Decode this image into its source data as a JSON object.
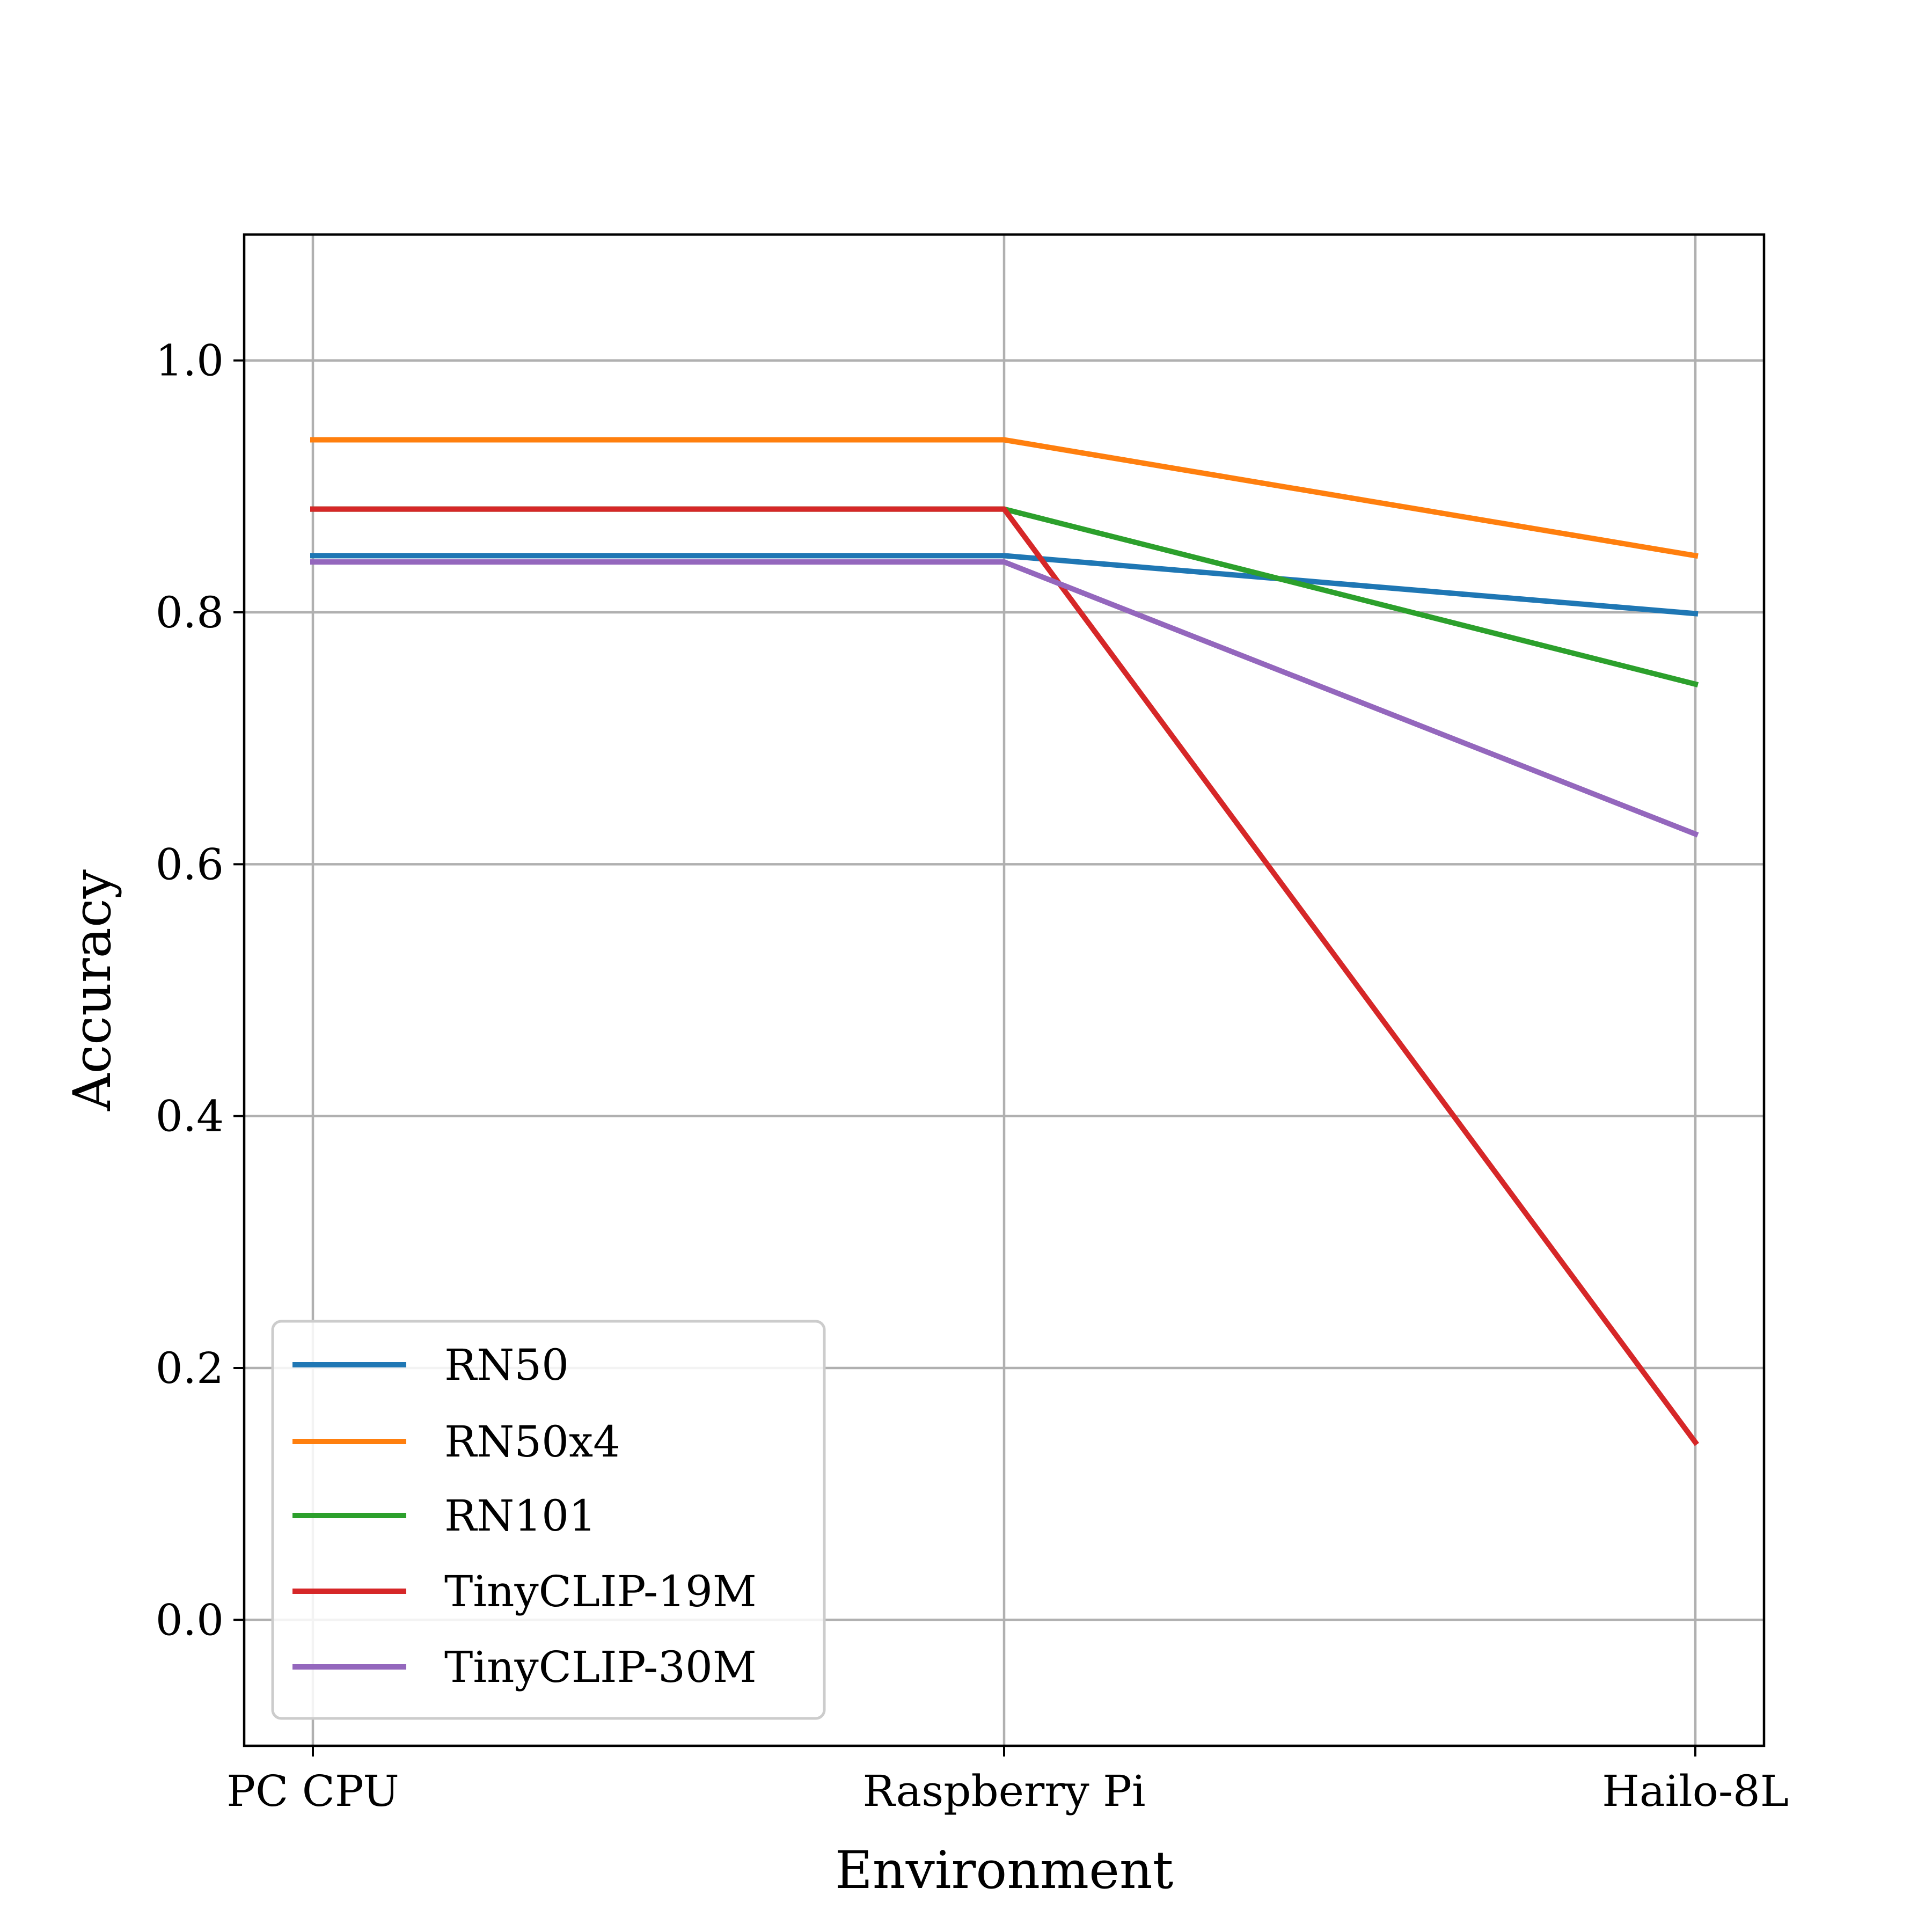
{
  "chart_data": {
    "type": "line",
    "title": "",
    "xlabel": "Environment",
    "ylabel": "Accuracy",
    "categories": [
      "PC CPU",
      "Raspberry Pi",
      "Hailo-8L"
    ],
    "ylim": [
      -0.1,
      1.1
    ],
    "yticks": [
      0.0,
      0.2,
      0.4,
      0.6,
      0.8,
      1.0
    ],
    "ytick_labels": [
      "0.0",
      "0.2",
      "0.4",
      "0.6",
      "0.8",
      "1.0"
    ],
    "grid": true,
    "legend_position": "lower-left",
    "series": [
      {
        "name": "RN50",
        "color": "#1f77b4",
        "values": [
          0.845,
          0.845,
          0.799
        ]
      },
      {
        "name": "RN50x4",
        "color": "#ff7f0e",
        "values": [
          0.937,
          0.937,
          0.845
        ]
      },
      {
        "name": "RN101",
        "color": "#2ca02c",
        "values": [
          0.882,
          0.882,
          0.743
        ]
      },
      {
        "name": "TinyCLIP-19M",
        "color": "#d62728",
        "values": [
          0.882,
          0.882,
          0.141
        ]
      },
      {
        "name": "TinyCLIP-30M",
        "color": "#9467bd",
        "values": [
          0.84,
          0.84,
          0.624
        ]
      }
    ]
  }
}
